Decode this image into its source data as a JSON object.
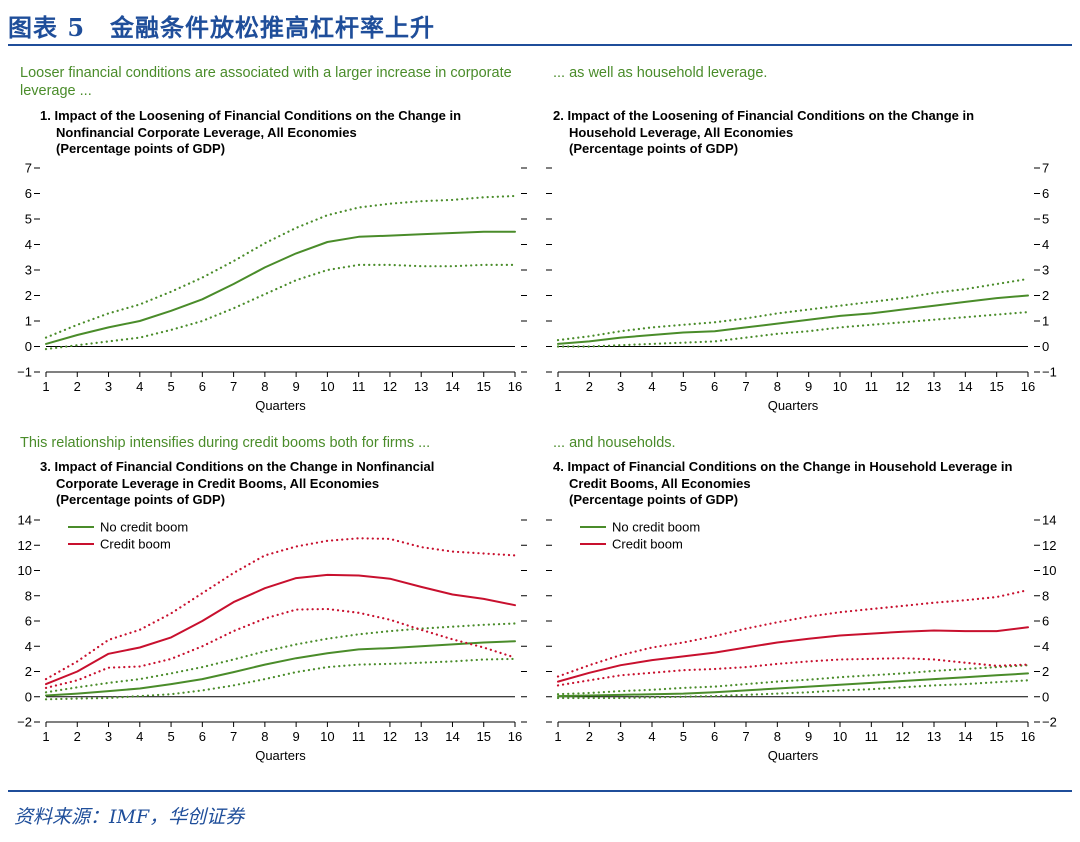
{
  "figure": {
    "title": "图表 5　金融条件放松推高杠杆率上升",
    "source": "资料来源：IMF，华创证券"
  },
  "chart_data": [
    {
      "type": "line",
      "caption": "Looser financial conditions are associated with a larger increase in corporate leverage ...",
      "title_lines": [
        "1. Impact of the Loosening of Financial Conditions on the Change in",
        "Nonfinancial Corporate Leverage, All Economies",
        "(Percentage points of GDP)"
      ],
      "xlabel": "Quarters",
      "x": [
        1,
        2,
        3,
        4,
        5,
        6,
        7,
        8,
        9,
        10,
        11,
        12,
        13,
        14,
        15,
        16
      ],
      "ylim": [
        -1,
        7
      ],
      "yticks": [
        -1,
        0,
        1,
        2,
        3,
        4,
        5,
        6,
        7
      ],
      "ytick_side": "left",
      "series": [
        {
          "name": "Estimate",
          "color": "#4a8c2a",
          "style": "solid",
          "values": [
            0.1,
            0.45,
            0.75,
            1.0,
            1.4,
            1.85,
            2.45,
            3.1,
            3.65,
            4.1,
            4.3,
            4.35,
            4.4,
            4.45,
            4.5,
            4.5
          ]
        },
        {
          "name": "Upper bound",
          "color": "#4a8c2a",
          "style": "dotted",
          "values": [
            0.35,
            0.85,
            1.3,
            1.65,
            2.15,
            2.7,
            3.35,
            4.05,
            4.65,
            5.15,
            5.45,
            5.6,
            5.7,
            5.75,
            5.85,
            5.9
          ]
        },
        {
          "name": "Lower bound",
          "color": "#4a8c2a",
          "style": "dotted",
          "values": [
            -0.1,
            0.05,
            0.2,
            0.35,
            0.65,
            1.0,
            1.5,
            2.05,
            2.6,
            3.0,
            3.2,
            3.2,
            3.15,
            3.15,
            3.2,
            3.2
          ]
        }
      ],
      "legend": []
    },
    {
      "type": "line",
      "caption": "... as well as household leverage.",
      "title_lines": [
        "2. Impact of the Loosening of Financial Conditions on the Change in",
        "Household Leverage, All Economies",
        "(Percentage points of GDP)"
      ],
      "xlabel": "Quarters",
      "x": [
        1,
        2,
        3,
        4,
        5,
        6,
        7,
        8,
        9,
        10,
        11,
        12,
        13,
        14,
        15,
        16
      ],
      "ylim": [
        -1,
        7
      ],
      "yticks": [
        -1,
        0,
        1,
        2,
        3,
        4,
        5,
        6,
        7
      ],
      "ytick_side": "right",
      "series": [
        {
          "name": "Estimate",
          "color": "#4a8c2a",
          "style": "solid",
          "values": [
            0.1,
            0.2,
            0.35,
            0.45,
            0.55,
            0.6,
            0.75,
            0.9,
            1.05,
            1.2,
            1.3,
            1.45,
            1.6,
            1.75,
            1.9,
            2.0
          ]
        },
        {
          "name": "Upper bound",
          "color": "#4a8c2a",
          "style": "dotted",
          "values": [
            0.25,
            0.4,
            0.6,
            0.75,
            0.85,
            0.95,
            1.1,
            1.3,
            1.45,
            1.6,
            1.75,
            1.9,
            2.1,
            2.25,
            2.45,
            2.65
          ]
        },
        {
          "name": "Lower bound",
          "color": "#4a8c2a",
          "style": "dotted",
          "values": [
            0.0,
            0.0,
            0.05,
            0.1,
            0.15,
            0.2,
            0.35,
            0.5,
            0.6,
            0.75,
            0.85,
            0.95,
            1.05,
            1.15,
            1.25,
            1.35
          ]
        }
      ],
      "legend": []
    },
    {
      "type": "line",
      "caption": "This relationship intensifies during credit booms both for firms ...",
      "title_lines": [
        "3. Impact of Financial Conditions on the Change in Nonfinancial",
        "Corporate Leverage in Credit Booms, All Economies",
        "(Percentage points of GDP)"
      ],
      "xlabel": "Quarters",
      "x": [
        1,
        2,
        3,
        4,
        5,
        6,
        7,
        8,
        9,
        10,
        11,
        12,
        13,
        14,
        15,
        16
      ],
      "ylim": [
        -2,
        14
      ],
      "yticks": [
        -2,
        0,
        2,
        4,
        6,
        8,
        10,
        12,
        14
      ],
      "ytick_side": "left",
      "series": [
        {
          "name": "No credit boom",
          "color": "#4a8c2a",
          "style": "solid",
          "values": [
            0.1,
            0.25,
            0.45,
            0.65,
            1.0,
            1.4,
            1.95,
            2.55,
            3.05,
            3.45,
            3.75,
            3.85,
            4.0,
            4.15,
            4.3,
            4.4
          ]
        },
        {
          "name": "No credit boom upper",
          "color": "#4a8c2a",
          "style": "dotted",
          "values": [
            0.35,
            0.75,
            1.1,
            1.4,
            1.85,
            2.35,
            2.95,
            3.6,
            4.15,
            4.6,
            4.95,
            5.2,
            5.4,
            5.55,
            5.7,
            5.8
          ]
        },
        {
          "name": "No credit boom lower",
          "color": "#4a8c2a",
          "style": "dotted",
          "values": [
            -0.2,
            -0.15,
            -0.1,
            0.05,
            0.2,
            0.5,
            0.9,
            1.4,
            1.95,
            2.35,
            2.55,
            2.6,
            2.7,
            2.8,
            2.95,
            3.0
          ]
        },
        {
          "name": "Credit boom",
          "color": "#c8102e",
          "style": "solid",
          "values": [
            1.0,
            2.0,
            3.4,
            3.9,
            4.7,
            6.0,
            7.5,
            8.6,
            9.4,
            9.65,
            9.6,
            9.35,
            8.7,
            8.1,
            7.75,
            7.25
          ]
        },
        {
          "name": "Credit boom upper",
          "color": "#c8102e",
          "style": "dotted",
          "values": [
            1.4,
            2.8,
            4.5,
            5.3,
            6.6,
            8.2,
            9.8,
            11.2,
            11.9,
            12.35,
            12.55,
            12.5,
            11.85,
            11.5,
            11.35,
            11.2
          ]
        },
        {
          "name": "Credit boom lower",
          "color": "#c8102e",
          "style": "dotted",
          "values": [
            0.7,
            1.3,
            2.3,
            2.4,
            3.0,
            4.0,
            5.2,
            6.2,
            6.9,
            6.95,
            6.65,
            6.1,
            5.3,
            4.55,
            3.9,
            3.1
          ]
        }
      ],
      "legend": [
        {
          "label": "No credit boom",
          "color": "#4a8c2a"
        },
        {
          "label": "Credit boom",
          "color": "#c8102e"
        }
      ]
    },
    {
      "type": "line",
      "caption": "... and households.",
      "title_lines": [
        "4. Impact of Financial Conditions on the Change in Household Leverage in",
        "Credit Booms, All Economies",
        "(Percentage points of GDP)"
      ],
      "xlabel": "Quarters",
      "x": [
        1,
        2,
        3,
        4,
        5,
        6,
        7,
        8,
        9,
        10,
        11,
        12,
        13,
        14,
        15,
        16
      ],
      "ylim": [
        -2,
        14
      ],
      "yticks": [
        -2,
        0,
        2,
        4,
        6,
        8,
        10,
        12,
        14
      ],
      "ytick_side": "right",
      "series": [
        {
          "name": "No credit boom",
          "color": "#4a8c2a",
          "style": "solid",
          "values": [
            0.05,
            0.1,
            0.15,
            0.2,
            0.25,
            0.35,
            0.5,
            0.65,
            0.8,
            0.95,
            1.1,
            1.25,
            1.4,
            1.55,
            1.7,
            1.85
          ]
        },
        {
          "name": "No credit boom upper",
          "color": "#4a8c2a",
          "style": "dotted",
          "values": [
            0.2,
            0.3,
            0.45,
            0.55,
            0.7,
            0.8,
            1.0,
            1.2,
            1.35,
            1.55,
            1.7,
            1.85,
            2.05,
            2.2,
            2.35,
            2.5
          ]
        },
        {
          "name": "No credit boom lower",
          "color": "#4a8c2a",
          "style": "dotted",
          "values": [
            -0.1,
            -0.1,
            -0.1,
            -0.05,
            0.0,
            0.05,
            0.15,
            0.25,
            0.35,
            0.5,
            0.6,
            0.75,
            0.9,
            1.0,
            1.15,
            1.3
          ]
        },
        {
          "name": "Credit boom",
          "color": "#c8102e",
          "style": "solid",
          "values": [
            1.2,
            1.9,
            2.5,
            2.9,
            3.2,
            3.5,
            3.9,
            4.3,
            4.6,
            4.85,
            5.0,
            5.15,
            5.25,
            5.2,
            5.2,
            5.5
          ]
        },
        {
          "name": "Credit boom upper",
          "color": "#c8102e",
          "style": "dotted",
          "values": [
            1.6,
            2.5,
            3.3,
            3.9,
            4.3,
            4.8,
            5.4,
            5.9,
            6.35,
            6.7,
            6.95,
            7.2,
            7.45,
            7.65,
            7.9,
            8.45
          ]
        },
        {
          "name": "Credit boom lower",
          "color": "#c8102e",
          "style": "dotted",
          "values": [
            0.9,
            1.3,
            1.7,
            1.9,
            2.1,
            2.2,
            2.35,
            2.6,
            2.8,
            2.95,
            3.0,
            3.05,
            2.95,
            2.7,
            2.45,
            2.55
          ]
        }
      ],
      "legend": [
        {
          "label": "No credit boom",
          "color": "#4a8c2a"
        },
        {
          "label": "Credit boom",
          "color": "#c8102e"
        }
      ]
    }
  ]
}
